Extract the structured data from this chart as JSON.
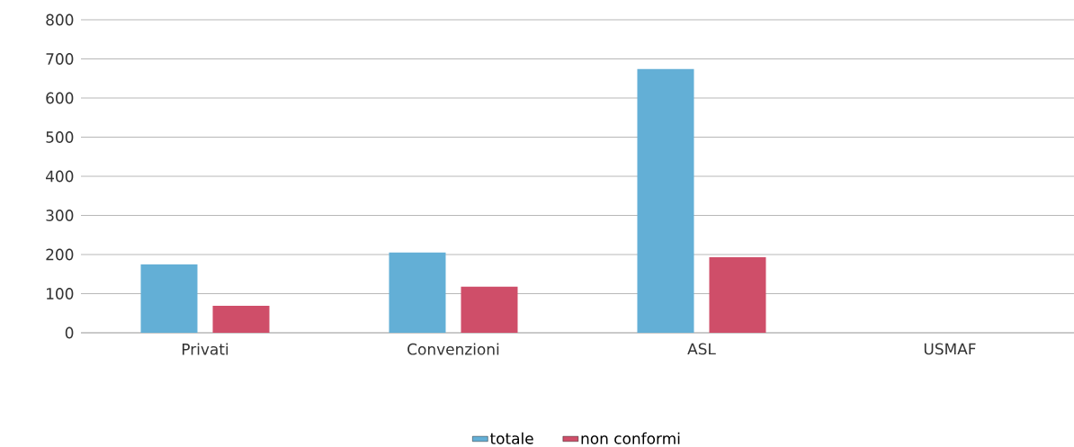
{
  "chart_data": {
    "type": "bar",
    "categories": [
      "Privati",
      "Convenzioni",
      "ASL",
      "USMAF"
    ],
    "series": [
      {
        "name": "totale",
        "color": "#63afd6",
        "values": [
          175,
          205,
          674,
          0
        ]
      },
      {
        "name": "non conformi",
        "color": "#cf4e69",
        "values": [
          69,
          118,
          193,
          0
        ]
      }
    ],
    "ylim": [
      0,
      800
    ],
    "yticks": [
      0,
      100,
      200,
      300,
      400,
      500,
      600,
      700,
      800
    ],
    "grid": "y",
    "legend": "bottom"
  }
}
